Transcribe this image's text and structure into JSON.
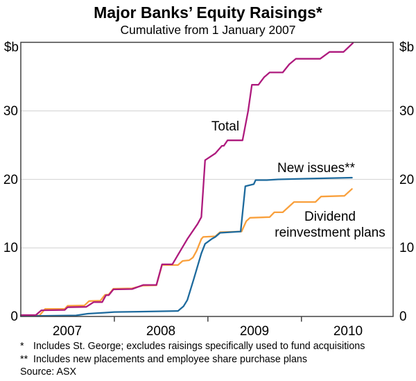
{
  "header": {
    "title": "Major Banks’ Equity Raisings*",
    "subtitle": "Cumulative from 1 January 2007"
  },
  "axes": {
    "unit_left": "$b",
    "unit_right": "$b",
    "y_ticks": [
      "30",
      "20",
      "10",
      "0"
    ],
    "x_ticks": [
      "2007",
      "2008",
      "2009",
      "2010"
    ]
  },
  "series_labels": {
    "total": "Total",
    "new_issues": "New issues**",
    "drp_line1": "Dividend",
    "drp_line2": "reinvestment plans"
  },
  "footnotes": [
    {
      "marker": "*",
      "text": "Includes St. George; excludes raisings specifically used to fund acquisitions"
    },
    {
      "marker": "**",
      "text": "Includes new placements and employee share purchase plans"
    },
    {
      "marker": "",
      "text": "Source: ASX"
    }
  ],
  "colors": {
    "total": "#ae1a7d",
    "new_issues": "#1d6a9d",
    "drp": "#f9a03c",
    "grid": "#d9d9d9",
    "frame": "#424242"
  },
  "chart_data": {
    "type": "line",
    "title": "Major Banks’ Equity Raisings*",
    "subtitle": "Cumulative from 1 January 2007",
    "ylabel": "$b",
    "ylim": [
      0,
      40
    ],
    "y_gridlines": [
      10,
      20,
      30
    ],
    "xlim_years": [
      2007.0,
      2010.98
    ],
    "x_tick_years": [
      2007,
      2008,
      2009,
      2010
    ],
    "x_boundary_tick_years": [
      2008,
      2009,
      2010
    ],
    "grid": "horizontal-only",
    "legend_position": "inline-labels",
    "series": [
      {
        "id": "drp",
        "name": "Dividend reinvestment plans",
        "color": "#f9a03c",
        "points": [
          [
            2007.0,
            0.1
          ],
          [
            2007.2,
            0.15
          ],
          [
            2007.26,
            1.1
          ],
          [
            2007.47,
            1.1
          ],
          [
            2007.5,
            1.55
          ],
          [
            2007.68,
            1.6
          ],
          [
            2007.73,
            2.25
          ],
          [
            2007.85,
            2.3
          ],
          [
            2007.9,
            3.15
          ],
          [
            2007.94,
            3.2
          ],
          [
            2007.99,
            4.05
          ],
          [
            2008.19,
            4.1
          ],
          [
            2008.3,
            4.5
          ],
          [
            2008.45,
            4.55
          ],
          [
            2008.51,
            7.5
          ],
          [
            2008.68,
            7.5
          ],
          [
            2008.73,
            8.1
          ],
          [
            2008.8,
            8.2
          ],
          [
            2008.84,
            8.6
          ],
          [
            2008.88,
            9.6
          ],
          [
            2008.93,
            11.3
          ],
          [
            2008.95,
            11.6
          ],
          [
            2009.08,
            11.7
          ],
          [
            2009.13,
            12.3
          ],
          [
            2009.36,
            12.4
          ],
          [
            2009.41,
            13.9
          ],
          [
            2009.45,
            14.4
          ],
          [
            2009.66,
            14.5
          ],
          [
            2009.71,
            15.2
          ],
          [
            2009.8,
            15.2
          ],
          [
            2009.92,
            16.7
          ],
          [
            2010.15,
            16.7
          ],
          [
            2010.21,
            17.5
          ],
          [
            2010.46,
            17.6
          ],
          [
            2010.54,
            18.6
          ]
        ]
      },
      {
        "id": "new_issues",
        "name": "New issues**",
        "color": "#1d6a9d",
        "points": [
          [
            2007.0,
            0.05
          ],
          [
            2007.59,
            0.15
          ],
          [
            2007.71,
            0.4
          ],
          [
            2007.89,
            0.55
          ],
          [
            2008.0,
            0.65
          ],
          [
            2008.26,
            0.7
          ],
          [
            2008.68,
            0.8
          ],
          [
            2008.74,
            1.5
          ],
          [
            2008.78,
            2.4
          ],
          [
            2008.85,
            5.5
          ],
          [
            2008.93,
            9.2
          ],
          [
            2008.97,
            10.6
          ],
          [
            2009.0,
            10.9
          ],
          [
            2009.04,
            11.3
          ],
          [
            2009.08,
            11.6
          ],
          [
            2009.13,
            12.2
          ],
          [
            2009.35,
            12.4
          ],
          [
            2009.4,
            19.0
          ],
          [
            2009.49,
            19.3
          ],
          [
            2009.51,
            19.9
          ],
          [
            2009.63,
            19.9
          ],
          [
            2009.75,
            20.0
          ],
          [
            2010.04,
            20.1
          ],
          [
            2010.54,
            20.25
          ]
        ]
      },
      {
        "id": "total",
        "name": "Total",
        "color": "#ae1a7d",
        "points": [
          [
            2007.0,
            0.2
          ],
          [
            2007.16,
            0.2
          ],
          [
            2007.22,
            0.9
          ],
          [
            2007.47,
            0.95
          ],
          [
            2007.5,
            1.35
          ],
          [
            2007.7,
            1.4
          ],
          [
            2007.78,
            2.1
          ],
          [
            2007.87,
            2.1
          ],
          [
            2007.91,
            3.1
          ],
          [
            2007.94,
            3.1
          ],
          [
            2007.99,
            3.95
          ],
          [
            2008.19,
            4.0
          ],
          [
            2008.31,
            4.6
          ],
          [
            2008.45,
            4.6
          ],
          [
            2008.51,
            7.6
          ],
          [
            2008.62,
            7.6
          ],
          [
            2008.78,
            11.3
          ],
          [
            2008.89,
            13.5
          ],
          [
            2008.93,
            14.5
          ],
          [
            2008.97,
            22.8
          ],
          [
            2009.08,
            23.8
          ],
          [
            2009.15,
            24.9
          ],
          [
            2009.17,
            24.9
          ],
          [
            2009.21,
            25.7
          ],
          [
            2009.37,
            25.7
          ],
          [
            2009.43,
            30.0
          ],
          [
            2009.47,
            33.8
          ],
          [
            2009.54,
            33.8
          ],
          [
            2009.6,
            34.9
          ],
          [
            2009.66,
            35.6
          ],
          [
            2009.8,
            35.6
          ],
          [
            2009.87,
            36.8
          ],
          [
            2009.94,
            37.6
          ],
          [
            2010.2,
            37.6
          ],
          [
            2010.3,
            38.6
          ],
          [
            2010.45,
            38.6
          ],
          [
            2010.55,
            39.9
          ]
        ]
      }
    ]
  }
}
